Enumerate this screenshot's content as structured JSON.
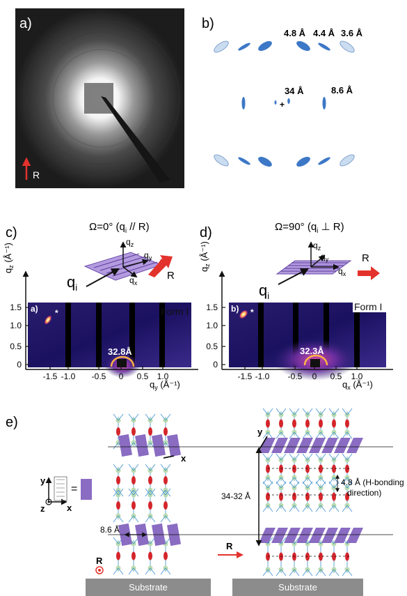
{
  "panel_a": {
    "label": "a)",
    "arrow_label": "R"
  },
  "panel_b": {
    "label": "b)",
    "d_48": "4.8 Å",
    "d_44": "4.4 Å",
    "d_36": "3.6 Å",
    "d_34": "34 Å",
    "d_86": "8.6 Å",
    "plus": "+"
  },
  "panel_c": {
    "label": "c)",
    "title": "Ω=0° (q",
    "title_sub": "i",
    "title_tail": " // R)",
    "inset_label": "a)",
    "form": "Form I",
    "star": "*",
    "ring_label": "32.8Å",
    "qz": "q",
    "qz_sub": "z",
    "qy": "q",
    "qy_sub": "y",
    "qx": "q",
    "qx_sub": "x",
    "qi": "q",
    "qi_sub": "i",
    "R": "R",
    "ylabel": "q",
    "ylabel_sub": "z",
    "ylabel_unit": " (Å⁻¹)",
    "xlabel": "q",
    "xlabel_sub": "y",
    "xlabel_unit": " (Å⁻¹)",
    "yticks": [
      "1.5",
      "1.0",
      "0.5",
      "0"
    ],
    "xticks": [
      "-1.5",
      "-1.0",
      "-0.5",
      "0",
      "0.5",
      "1.0"
    ]
  },
  "panel_d": {
    "label": "d)",
    "title": "Ω=90° (q",
    "title_sub": "i",
    "title_tail": " ⊥ R)",
    "inset_label": "b)",
    "form": "Form I",
    "star": "*",
    "ring_label": "32.3Å",
    "qz": "q",
    "qz_sub": "z",
    "qy": "q",
    "qy_sub": "y",
    "qx": "q",
    "qx_sub": "x",
    "qi": "q",
    "qi_sub": "i",
    "R": "R",
    "ylabel": "q",
    "ylabel_sub": "z",
    "ylabel_unit": " (Å⁻¹)",
    "xlabel": "q",
    "xlabel_sub": "x",
    "xlabel_unit": " (Å⁻¹)",
    "yticks": [
      "1.5",
      "1.0",
      "0.5",
      "0"
    ],
    "xticks": [
      "-1.5",
      "-1.0",
      "-0.5",
      "0",
      "0.5",
      "1.0"
    ]
  },
  "panel_e": {
    "label": "e)",
    "axis_y": "y",
    "axis_x": "x",
    "axis_z": "z",
    "equals": "=",
    "x_left": "x",
    "y_right": "y",
    "spacing_86": "8.6 Å",
    "spacing_3432": "34-32 Å",
    "hbond_1": "4.8 Å (H-bonding",
    "hbond_2": "direction)",
    "R": "R",
    "substrate_left": "Substrate",
    "substrate_right": "Substrate"
  },
  "colors": {
    "arrow": "#e3322c",
    "ellipse_dark": "#3d78c7",
    "ellipse_light": "#c9dcf0",
    "lamella": "#8a6cc2",
    "node_red": "#d4252b",
    "node_green": "#b9dcb0",
    "substrate": "#8c8c8c"
  }
}
